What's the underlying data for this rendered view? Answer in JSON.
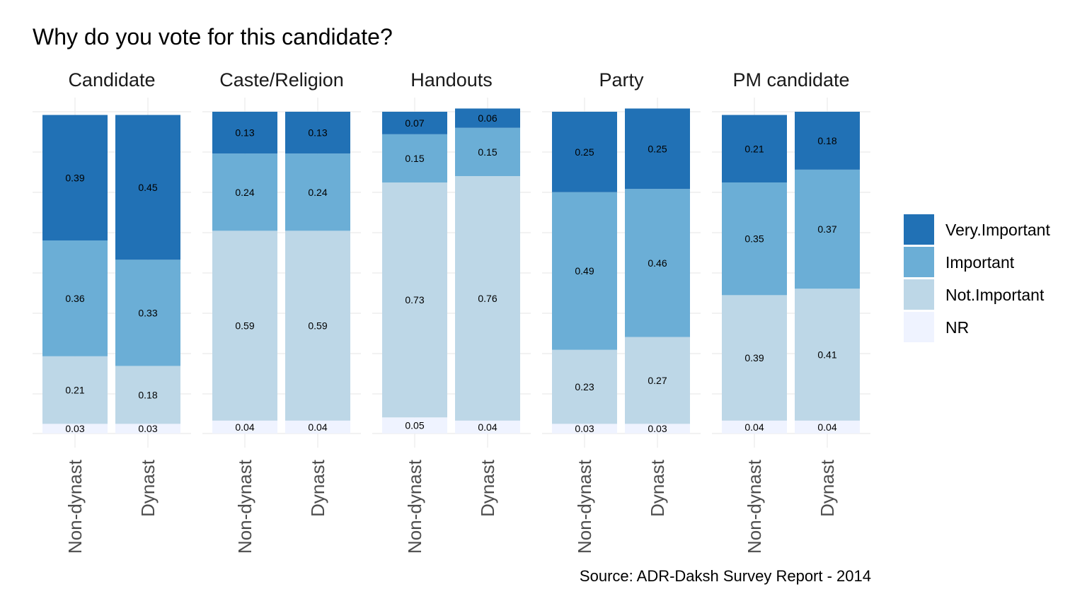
{
  "chart_data": {
    "type": "bar",
    "stacked": true,
    "title": "Why do you vote for this candidate?",
    "caption": "Source: ADR-Daksh Survey Report - 2014",
    "ylim": [
      0,
      1
    ],
    "grid": true,
    "legend_position": "right",
    "facets": [
      "Candidate",
      "Caste/Religion",
      "Handouts",
      "Party",
      "PM candidate"
    ],
    "categories": [
      "Non-dynast",
      "Dynast"
    ],
    "series": [
      {
        "name": "Very.Important",
        "color": "#2171b5",
        "values": [
          [
            0.39,
            0.45
          ],
          [
            0.13,
            0.13
          ],
          [
            0.07,
            0.06
          ],
          [
            0.25,
            0.25
          ],
          [
            0.21,
            0.18
          ]
        ]
      },
      {
        "name": "Important",
        "color": "#6baed6",
        "values": [
          [
            0.36,
            0.33
          ],
          [
            0.24,
            0.24
          ],
          [
            0.15,
            0.15
          ],
          [
            0.49,
            0.46
          ],
          [
            0.35,
            0.37
          ]
        ]
      },
      {
        "name": "Not.Important",
        "color": "#bdd7e7",
        "values": [
          [
            0.21,
            0.18
          ],
          [
            0.59,
            0.59
          ],
          [
            0.73,
            0.76
          ],
          [
            0.23,
            0.27
          ],
          [
            0.39,
            0.41
          ]
        ]
      },
      {
        "name": "NR",
        "color": "#eff3ff",
        "values": [
          [
            0.03,
            0.03
          ],
          [
            0.04,
            0.04
          ],
          [
            0.05,
            0.04
          ],
          [
            0.03,
            0.03
          ],
          [
            0.04,
            0.04
          ]
        ]
      }
    ]
  }
}
